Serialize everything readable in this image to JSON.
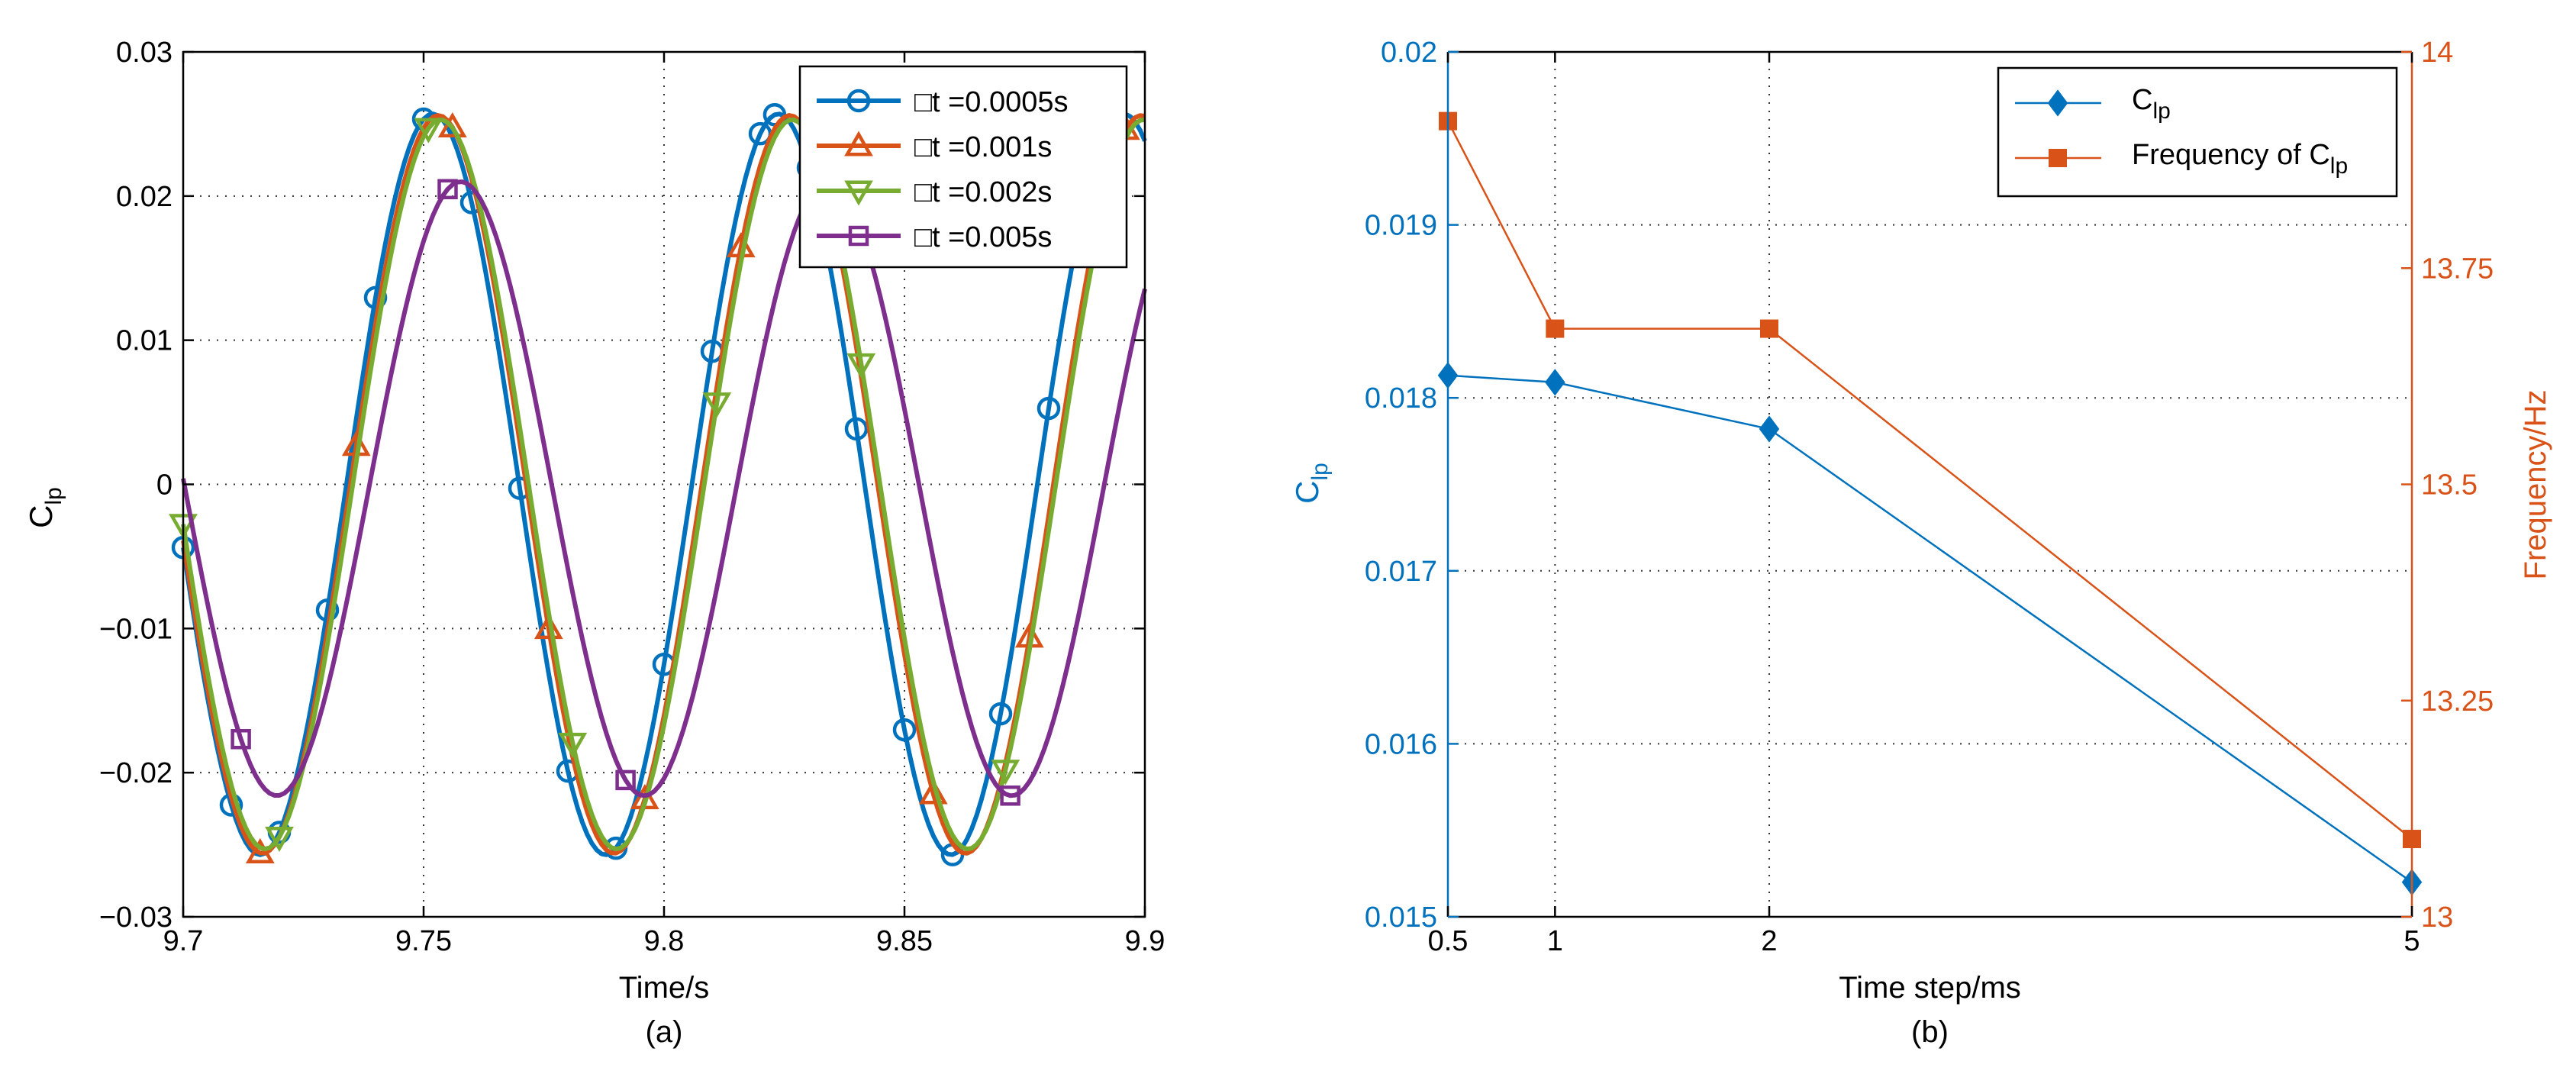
{
  "charts": [
    {
      "type": "line",
      "caption": "(a)",
      "xlabel": "Time/s",
      "ylabel_main": "C",
      "ylabel_sub": "lp",
      "xlim": [
        9.7,
        9.9
      ],
      "ylim": [
        -0.03,
        0.03
      ],
      "xticks": [
        9.7,
        9.75,
        9.8,
        9.85,
        9.9
      ],
      "xtick_labels": [
        "9.7",
        "9.75",
        "9.8",
        "9.85",
        "9.9"
      ],
      "yticks": [
        -0.03,
        -0.02,
        -0.01,
        0,
        0.01,
        0.02,
        0.03
      ],
      "ytick_labels": [
        "−0.03",
        "−0.02",
        "−0.01",
        "0",
        "0.01",
        "0.02",
        "0.03"
      ],
      "grid": true,
      "legend_position": "top-right",
      "series": [
        {
          "name": "□t =0.0005s",
          "color": "#0072BD",
          "marker": "circle",
          "A": 0.0257,
          "f": 13.92,
          "t0": 9.716,
          "dc": 0.0,
          "marker_x": [
            9.7,
            9.71,
            9.72,
            9.73,
            9.74,
            9.75,
            9.76,
            9.77,
            9.78,
            9.79,
            9.8,
            9.81,
            9.82,
            9.823,
            9.83,
            9.84,
            9.85,
            9.86,
            9.87,
            9.88,
            9.89
          ]
        },
        {
          "name": "□t =0.001s",
          "color": "#D95319",
          "marker": "triangle-up",
          "A": 0.0256,
          "f": 13.68,
          "t0": 9.7165,
          "dc": 0.0,
          "marker_x": [
            9.716,
            9.736,
            9.756,
            9.776,
            9.796,
            9.816,
            9.836,
            9.856,
            9.876,
            9.896
          ]
        },
        {
          "name": "□t =0.002s",
          "color": "#77AC30",
          "marker": "triangle-down",
          "A": 0.0253,
          "f": 13.68,
          "t0": 9.717,
          "dc": 0.0,
          "marker_x": [
            9.7,
            9.72,
            9.751,
            9.781,
            9.811,
            9.841,
            9.871,
            9.901
          ]
        },
        {
          "name": "□t =0.005s",
          "color": "#7E2F8E",
          "marker": "square",
          "A": 0.0213,
          "f": 13.09,
          "t0": 9.7195,
          "dc": -0.0003,
          "marker_x": [
            9.712,
            9.755,
            9.792,
            9.838,
            9.872
          ]
        }
      ]
    },
    {
      "type": "line",
      "caption": "(b)",
      "xlabel": "Time step/ms",
      "ylabel_left_main": "C",
      "ylabel_left_sub": "lp",
      "ylabel_right": "Frequency/Hz",
      "xlim": [
        0.5,
        5
      ],
      "xticks": [
        0.5,
        1,
        2,
        5
      ],
      "xtick_labels": [
        "0.5",
        "1",
        "2",
        "5"
      ],
      "ylim_left": [
        0.015,
        0.02
      ],
      "yticks_left": [
        0.015,
        0.016,
        0.017,
        0.018,
        0.019,
        0.02
      ],
      "ytick_labels_left": [
        "0.015",
        "0.016",
        "0.017",
        "0.018",
        "0.019",
        "0.02"
      ],
      "ylim_right": [
        13,
        14
      ],
      "yticks_right": [
        13,
        13.25,
        13.5,
        13.75,
        14
      ],
      "ytick_labels_right": [
        "13",
        "13.25",
        "13.5",
        "13.75",
        "14"
      ],
      "grid": true,
      "legend_position": "top-right",
      "left_axis_color": "#0072BD",
      "right_axis_color": "#D95319",
      "series": [
        {
          "name_main": "C",
          "name_sub": "lp",
          "axis": "left",
          "color": "#0072BD",
          "marker": "diamond",
          "x": [
            0.5,
            1,
            2,
            5
          ],
          "y": [
            0.01813,
            0.01809,
            0.01782,
            0.0152
          ]
        },
        {
          "name_main": "Frequency of C",
          "name_sub": "lp",
          "axis": "right",
          "color": "#D95319",
          "marker": "square",
          "x": [
            0.5,
            1,
            2,
            5
          ],
          "y": [
            13.92,
            13.68,
            13.68,
            13.09
          ]
        }
      ]
    }
  ]
}
